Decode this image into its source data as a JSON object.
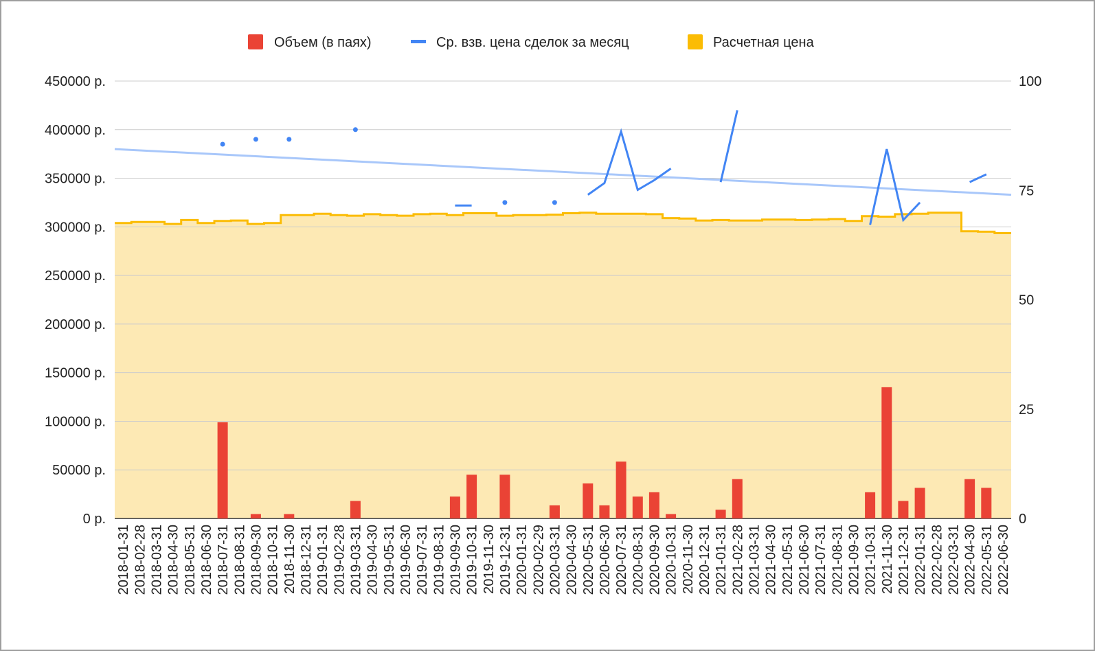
{
  "chart_data": {
    "type": "bar",
    "legend_position": "top",
    "grid": true,
    "colors": {
      "volume": "#ea4335",
      "avg_price": "#4285f4",
      "avg_price_trend": "#a8c7fa",
      "calc_price_line": "#fbbc04",
      "calc_price_fill": "#fde9b4",
      "grid": "#cccccc"
    },
    "legend": [
      {
        "key": "volume",
        "label": "Объем (в паях)",
        "color": "#ea4335"
      },
      {
        "key": "avg_price",
        "label": "Ср. взв. цена сделок за месяц",
        "color": "#4285f4"
      },
      {
        "key": "calc_price",
        "label": "Расчетная цена",
        "color": "#fbbc04"
      }
    ],
    "left_axis": {
      "ylim": [
        0,
        450000
      ],
      "ticks": [
        {
          "value": 0,
          "label": "0 р."
        },
        {
          "value": 50000,
          "label": "50000 р."
        },
        {
          "value": 100000,
          "label": "100000 р."
        },
        {
          "value": 150000,
          "label": "150000 р."
        },
        {
          "value": 200000,
          "label": "200000 р."
        },
        {
          "value": 250000,
          "label": "250000 р."
        },
        {
          "value": 300000,
          "label": "300000 р."
        },
        {
          "value": 350000,
          "label": "350000 р."
        },
        {
          "value": 400000,
          "label": "400000 р."
        },
        {
          "value": 450000,
          "label": "450000 р."
        }
      ]
    },
    "right_axis": {
      "ylim": [
        0,
        100
      ],
      "ticks": [
        {
          "value": 0,
          "label": "0"
        },
        {
          "value": 25,
          "label": "25"
        },
        {
          "value": 50,
          "label": "50"
        },
        {
          "value": 75,
          "label": "75"
        },
        {
          "value": 100,
          "label": "100"
        }
      ]
    },
    "categories": [
      "2018-01-31",
      "2018-02-28",
      "2018-03-31",
      "2018-04-30",
      "2018-05-31",
      "2018-06-30",
      "2018-07-31",
      "2018-08-31",
      "2018-09-30",
      "2018-10-31",
      "2018-11-30",
      "2018-12-31",
      "2019-01-31",
      "2019-02-28",
      "2019-03-31",
      "2019-04-30",
      "2019-05-31",
      "2019-06-30",
      "2019-07-31",
      "2019-08-31",
      "2019-09-30",
      "2019-10-31",
      "2019-11-30",
      "2019-12-31",
      "2020-01-31",
      "2020-02-29",
      "2020-03-31",
      "2020-04-30",
      "2020-05-31",
      "2020-06-30",
      "2020-07-31",
      "2020-08-31",
      "2020-09-30",
      "2020-10-31",
      "2020-11-30",
      "2020-12-31",
      "2021-01-31",
      "2021-02-28",
      "2021-03-31",
      "2021-04-30",
      "2021-05-31",
      "2021-06-30",
      "2021-07-31",
      "2021-08-31",
      "2021-09-30",
      "2021-10-31",
      "2021-11-30",
      "2021-12-31",
      "2022-01-31",
      "2022-02-28",
      "2022-03-31",
      "2022-04-30",
      "2022-05-31",
      "2022-06-30"
    ],
    "series": [
      {
        "key": "volume",
        "name": "Объем (в паях)",
        "type": "bar",
        "axis": "right",
        "values": [
          null,
          null,
          null,
          null,
          null,
          null,
          22,
          null,
          1,
          null,
          1,
          null,
          null,
          null,
          4,
          null,
          null,
          null,
          null,
          null,
          5,
          10,
          null,
          10,
          null,
          null,
          3,
          null,
          8,
          3,
          13,
          5,
          6,
          1,
          null,
          null,
          2,
          9,
          null,
          null,
          null,
          null,
          null,
          null,
          null,
          6,
          30,
          4,
          7,
          null,
          null,
          9,
          7,
          null
        ]
      },
      {
        "key": "avg_price",
        "name": "Ср. взв. цена сделок за месяц",
        "type": "line",
        "axis": "left",
        "values": [
          null,
          null,
          null,
          null,
          null,
          null,
          385000,
          null,
          390000,
          null,
          390000,
          null,
          null,
          null,
          400000,
          null,
          null,
          null,
          null,
          null,
          322000,
          322000,
          null,
          325000,
          null,
          null,
          325000,
          null,
          333000,
          345000,
          398000,
          338000,
          348000,
          360000,
          null,
          null,
          346000,
          420000,
          null,
          null,
          null,
          null,
          null,
          null,
          null,
          302000,
          380000,
          307000,
          325000,
          null,
          null,
          346000,
          354000,
          null
        ]
      },
      {
        "key": "avg_price_trend",
        "name": "",
        "type": "trendline",
        "axis": "left",
        "start_value": 380000,
        "end_value": 333000
      },
      {
        "key": "calc_price",
        "name": "Расчетная цена",
        "type": "stepped-area",
        "axis": "left",
        "values": [
          304000,
          305000,
          305000,
          303000,
          307000,
          304000,
          306000,
          306500,
          303000,
          304000,
          312000,
          312000,
          313500,
          312000,
          311500,
          313000,
          312000,
          311500,
          313000,
          313500,
          312000,
          314000,
          314000,
          311500,
          312000,
          312000,
          312500,
          314000,
          314500,
          313500,
          313500,
          313500,
          313000,
          309000,
          308500,
          306500,
          307000,
          306500,
          306500,
          307500,
          307500,
          307000,
          307500,
          308000,
          306000,
          311000,
          310500,
          313000,
          313500,
          314500,
          314500,
          295500,
          295000,
          293500
        ]
      }
    ]
  }
}
